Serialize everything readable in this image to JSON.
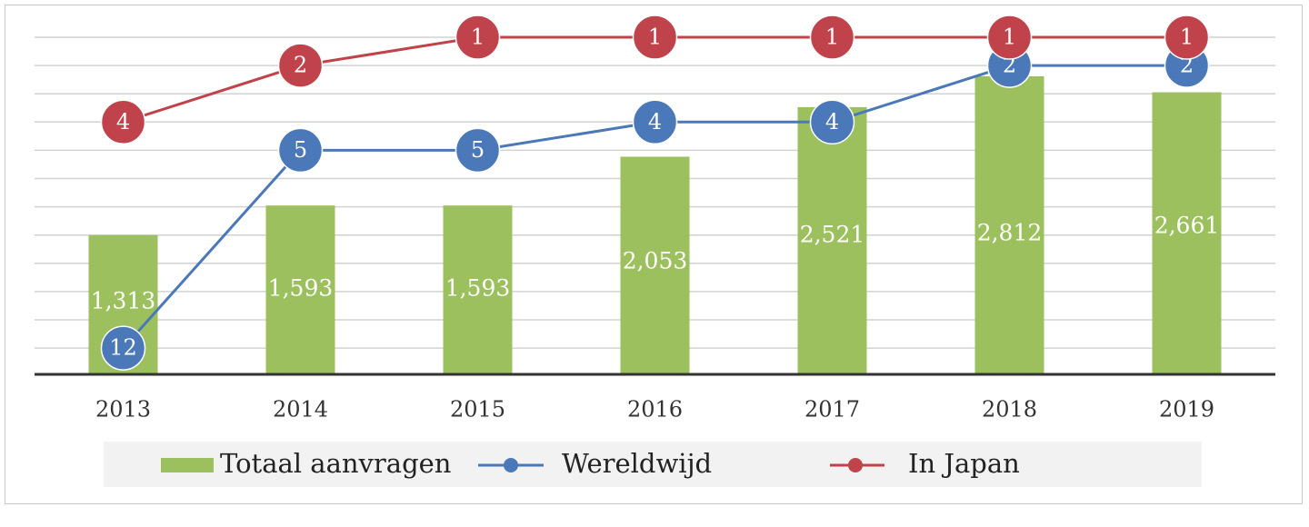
{
  "chart_data": {
    "type": "bar",
    "categories": [
      "2013",
      "2014",
      "2015",
      "2016",
      "2017",
      "2018",
      "2019"
    ],
    "series": [
      {
        "name": "Totaal aanvragen",
        "kind": "bar",
        "values": [
          1313,
          1593,
          1593,
          2053,
          2521,
          2812,
          2661
        ],
        "labels": [
          "1,313",
          "1,593",
          "1,593",
          "2,053",
          "2,521",
          "2,812",
          "2,661"
        ],
        "color": "#9dc05e"
      },
      {
        "name": "Wereldwijd",
        "kind": "line",
        "values": [
          12,
          5,
          5,
          4,
          4,
          2,
          2
        ],
        "color": "#4a78b8"
      },
      {
        "name": "In Japan",
        "kind": "line",
        "values": [
          4,
          2,
          1,
          1,
          1,
          1,
          1
        ],
        "color": "#c0424a"
      }
    ],
    "legend": {
      "position": "bottom"
    },
    "grid": true
  }
}
